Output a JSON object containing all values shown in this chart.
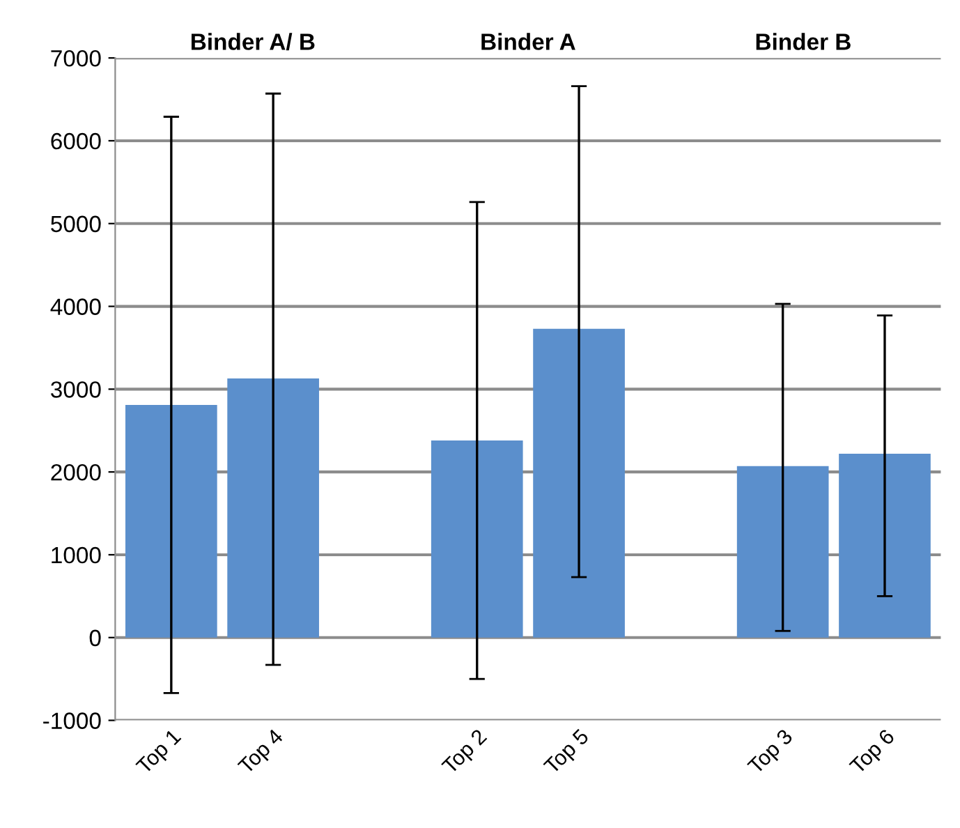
{
  "chart_data": {
    "type": "bar",
    "categories": [
      "Top 1",
      "Top 4",
      null,
      "Top 2",
      "Top 5",
      null,
      "Top 3",
      "Top 6"
    ],
    "values": [
      2810,
      3130,
      null,
      2380,
      3730,
      null,
      2070,
      2220
    ],
    "errors": [
      [
        -670,
        6290
      ],
      [
        -330,
        6570
      ],
      null,
      [
        -500,
        5260
      ],
      [
        730,
        6660
      ],
      null,
      [
        80,
        4030
      ],
      [
        500,
        3890
      ]
    ],
    "color": "#5b8fcc",
    "ylim": [
      -1000,
      7000
    ],
    "yticks": [
      -1000,
      0,
      1000,
      2000,
      3000,
      4000,
      5000,
      6000,
      7000
    ],
    "grid": "y",
    "annotations": [
      "Binder A/ B",
      "Binder A",
      "Binder B"
    ]
  }
}
